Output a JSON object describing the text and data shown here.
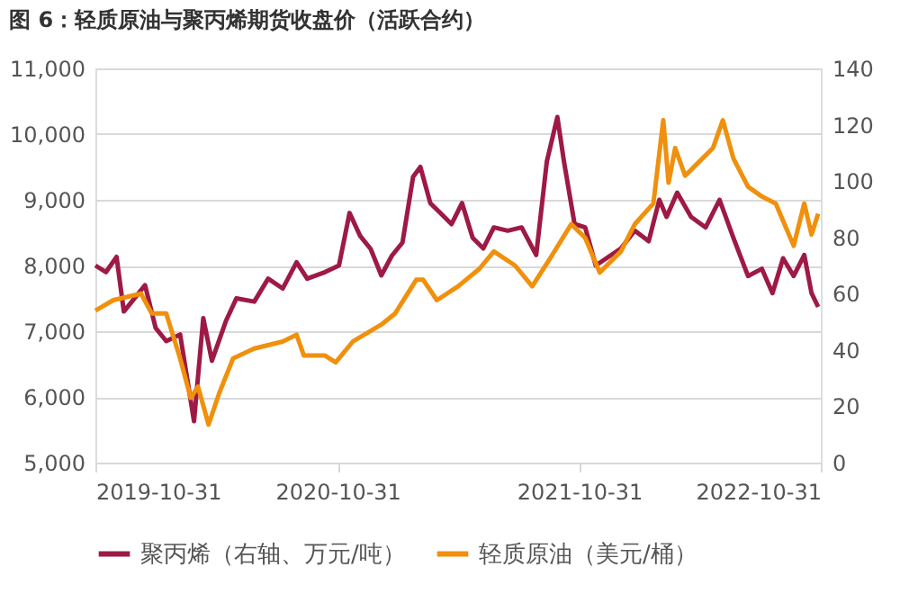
{
  "chart_data": {
    "type": "line",
    "title": "图 6：轻质原油与聚丙烯期货收盘价（活跃合约）",
    "xlim": [
      "2019-10-31",
      "2022-10-31"
    ],
    "xticks": [
      "2019-10-31",
      "2020-10-31",
      "2021-10-31",
      "2022-10-31"
    ],
    "ylim": [
      5000,
      11000
    ],
    "yticks": [
      {
        "value": 5000,
        "label": "5,000"
      },
      {
        "value": 6000,
        "label": "6,000"
      },
      {
        "value": 7000,
        "label": "7,000"
      },
      {
        "value": 8000,
        "label": "8,000"
      },
      {
        "value": 9000,
        "label": "9,000"
      },
      {
        "value": 10000,
        "label": "10,000"
      },
      {
        "value": 11000,
        "label": "11,000"
      }
    ],
    "y2lim": [
      0,
      140
    ],
    "y2ticks": [
      0,
      20,
      40,
      60,
      80,
      100,
      120,
      140
    ],
    "grid": "y",
    "legend": "bottom",
    "marker": "none",
    "line_style": "solid",
    "series": [
      {
        "name": "聚丙烯（右轴、万元/吨）",
        "color": "#9e1a45",
        "x": [
          "2019-10-31",
          "2019-11-16",
          "2019-12-02",
          "2019-12-13",
          "2020-01-14",
          "2020-01-30",
          "2020-02-15",
          "2020-03-07",
          "2020-03-28",
          "2020-04-11",
          "2020-04-24",
          "2020-05-15",
          "2020-05-31",
          "2020-06-27",
          "2020-07-18",
          "2020-08-09",
          "2020-08-30",
          "2020-09-15",
          "2020-10-12",
          "2020-11-02",
          "2020-11-18",
          "2020-12-04",
          "2020-12-20",
          "2021-01-05",
          "2021-01-21",
          "2021-02-06",
          "2021-02-22",
          "2021-03-05",
          "2021-03-20",
          "2021-04-05",
          "2021-04-21",
          "2021-05-07",
          "2021-05-23",
          "2021-06-08",
          "2021-06-24",
          "2021-07-15",
          "2021-08-05",
          "2021-08-27",
          "2021-09-12",
          "2021-09-28",
          "2021-10-08",
          "2021-10-24",
          "2021-11-09",
          "2021-11-25",
          "2021-12-11",
          "2022-01-02",
          "2022-01-23",
          "2022-02-13",
          "2022-03-01",
          "2022-03-12",
          "2022-03-28",
          "2022-04-18",
          "2022-05-10",
          "2022-05-31",
          "2022-06-21",
          "2022-07-13",
          "2022-08-03",
          "2022-08-19",
          "2022-09-04",
          "2022-09-20",
          "2022-10-06",
          "2022-10-17",
          "2022-10-27"
        ],
        "values": [
          8000,
          7900,
          8130,
          7300,
          7700,
          7050,
          6850,
          6950,
          5630,
          7200,
          6550,
          7150,
          7500,
          7450,
          7800,
          7650,
          8050,
          7800,
          7900,
          8000,
          8800,
          8450,
          8250,
          7850,
          8150,
          8350,
          9350,
          9500,
          8950,
          8790,
          8630,
          8950,
          8420,
          8260,
          8580,
          8530,
          8580,
          8160,
          9580,
          10260,
          9580,
          8630,
          8580,
          8000,
          8110,
          8260,
          8530,
          8370,
          9000,
          8740,
          9110,
          8740,
          8580,
          9000,
          8420,
          7840,
          7950,
          7580,
          8110,
          7840,
          8160,
          7580,
          7370
        ]
      },
      {
        "name": "轻质原油（美元/桶）",
        "color": "#f0900c",
        "axis": "y2",
        "x": [
          "2019-10-31",
          "2019-11-27",
          "2020-01-08",
          "2020-01-24",
          "2020-02-15",
          "2020-03-07",
          "2020-03-23",
          "2020-04-03",
          "2020-04-19",
          "2020-05-05",
          "2020-05-26",
          "2020-06-27",
          "2020-08-09",
          "2020-08-30",
          "2020-09-10",
          "2020-10-12",
          "2020-10-28",
          "2020-11-23",
          "2021-01-05",
          "2021-01-26",
          "2021-02-27",
          "2021-03-09",
          "2021-03-30",
          "2021-05-01",
          "2021-06-02",
          "2021-06-24",
          "2021-07-26",
          "2021-08-21",
          "2021-09-17",
          "2021-10-19",
          "2021-11-09",
          "2021-12-01",
          "2022-01-02",
          "2022-01-23",
          "2022-02-20",
          "2022-03-07",
          "2022-03-15",
          "2022-03-25",
          "2022-04-09",
          "2022-04-30",
          "2022-05-21",
          "2022-06-05",
          "2022-06-21",
          "2022-07-13",
          "2022-08-03",
          "2022-08-24",
          "2022-09-20",
          "2022-10-06",
          "2022-10-17",
          "2022-10-27"
        ],
        "values": [
          54,
          57.7,
          60,
          53,
          53,
          37,
          23,
          27,
          13.5,
          24.6,
          37,
          40.5,
          43,
          45.4,
          38,
          38,
          35.6,
          43,
          49,
          53,
          65,
          65,
          57.7,
          62.6,
          68.8,
          75,
          70,
          62.6,
          72.5,
          84.7,
          79.8,
          67.5,
          75,
          84.7,
          92,
          121.6,
          99.4,
          111.7,
          101.9,
          106.8,
          111.7,
          121.6,
          108,
          98,
          94.5,
          92,
          77,
          92,
          81,
          88.4
        ]
      }
    ]
  }
}
